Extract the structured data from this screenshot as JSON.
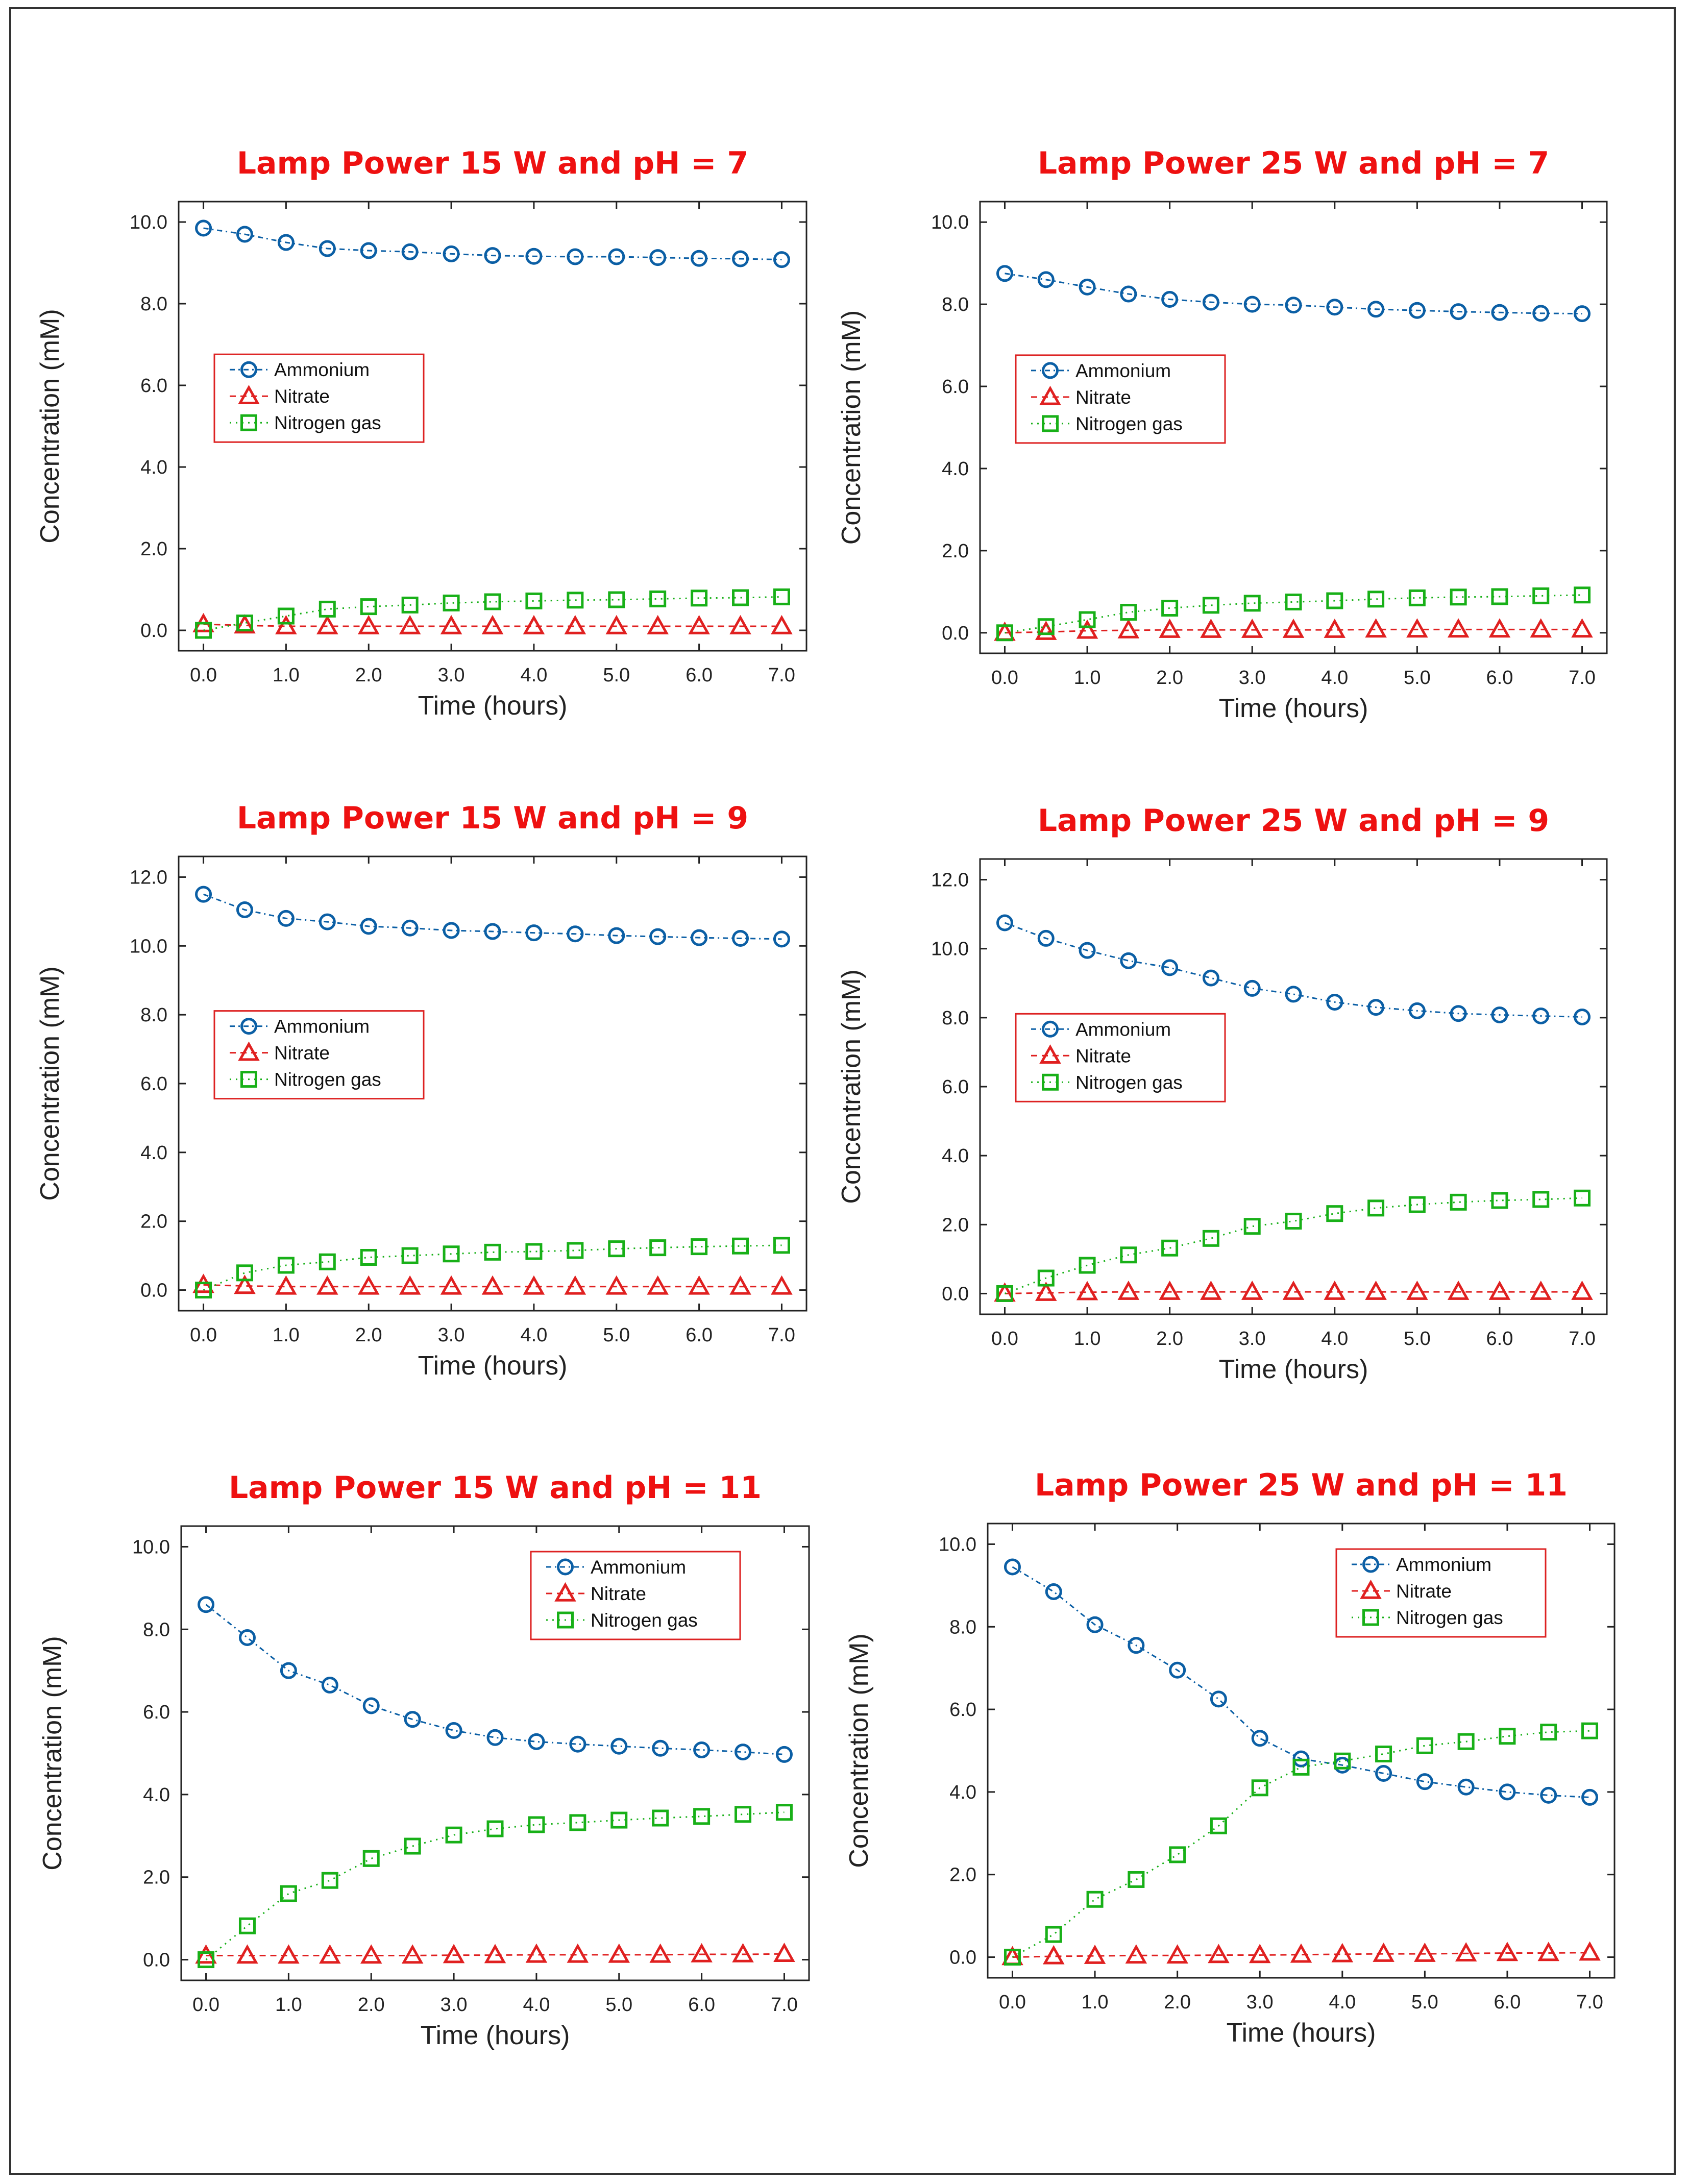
{
  "chart_data": [
    {
      "type": "line",
      "title": "Lamp Power 15 W and pH = 7",
      "xlabel": "Time (hours)",
      "ylabel": "Concentration (mM)",
      "xlim": [
        -0.3,
        7.3
      ],
      "ylim": [
        -0.5,
        10.5
      ],
      "x_ticks": [
        "0.0",
        "1.0",
        "2.0",
        "3.0",
        "4.0",
        "5.0",
        "6.0",
        "7.0"
      ],
      "y_ticks": [
        "0.0",
        "2.0",
        "4.0",
        "6.0",
        "8.0",
        "10.0"
      ],
      "legend_position": "middle-left",
      "x": [
        0,
        0.5,
        1,
        1.5,
        2,
        2.5,
        3,
        3.5,
        4,
        4.5,
        5,
        5.5,
        6,
        6.5,
        7
      ],
      "series": [
        {
          "name": "Ammonium",
          "color": "#0b5fa5",
          "marker": "circle",
          "values": [
            9.85,
            9.7,
            9.5,
            9.35,
            9.3,
            9.27,
            9.22,
            9.18,
            9.16,
            9.15,
            9.15,
            9.13,
            9.11,
            9.1,
            9.08
          ]
        },
        {
          "name": "Nitrate",
          "color": "#e02020",
          "marker": "triangle",
          "values": [
            0.15,
            0.12,
            0.1,
            0.1,
            0.1,
            0.1,
            0.1,
            0.1,
            0.1,
            0.1,
            0.1,
            0.1,
            0.1,
            0.1,
            0.1
          ]
        },
        {
          "name": "Nitrogen gas",
          "color": "#18b018",
          "marker": "square",
          "values": [
            0.0,
            0.18,
            0.35,
            0.52,
            0.58,
            0.62,
            0.67,
            0.7,
            0.72,
            0.74,
            0.75,
            0.77,
            0.79,
            0.8,
            0.82
          ]
        }
      ]
    },
    {
      "type": "line",
      "title": "Lamp Power 25 W and pH = 7",
      "xlabel": "Time (hours)",
      "ylabel": "Concentration (mM)",
      "xlim": [
        -0.3,
        7.3
      ],
      "ylim": [
        -0.5,
        10.5
      ],
      "x_ticks": [
        "0.0",
        "1.0",
        "2.0",
        "3.0",
        "4.0",
        "5.0",
        "6.0",
        "7.0"
      ],
      "y_ticks": [
        "0.0",
        "2.0",
        "4.0",
        "6.0",
        "8.0",
        "10.0"
      ],
      "legend_position": "middle-left",
      "x": [
        0,
        0.5,
        1,
        1.5,
        2,
        2.5,
        3,
        3.5,
        4,
        4.5,
        5,
        5.5,
        6,
        6.5,
        7
      ],
      "series": [
        {
          "name": "Ammonium",
          "color": "#0b5fa5",
          "marker": "circle",
          "values": [
            8.75,
            8.6,
            8.42,
            8.25,
            8.12,
            8.05,
            8.0,
            7.98,
            7.93,
            7.88,
            7.85,
            7.82,
            7.8,
            7.78,
            7.77
          ]
        },
        {
          "name": "Nitrate",
          "color": "#e02020",
          "marker": "triangle",
          "values": [
            0.0,
            0.02,
            0.05,
            0.06,
            0.07,
            0.07,
            0.07,
            0.07,
            0.07,
            0.08,
            0.08,
            0.08,
            0.08,
            0.08,
            0.08
          ]
        },
        {
          "name": "Nitrogen gas",
          "color": "#18b018",
          "marker": "square",
          "values": [
            0.0,
            0.15,
            0.32,
            0.5,
            0.6,
            0.67,
            0.72,
            0.75,
            0.78,
            0.82,
            0.85,
            0.87,
            0.88,
            0.9,
            0.92
          ]
        }
      ]
    },
    {
      "type": "line",
      "title": "Lamp Power 15 W and pH = 9",
      "xlabel": "Time (hours)",
      "ylabel": "Concentration (mM)",
      "xlim": [
        -0.3,
        7.3
      ],
      "ylim": [
        -0.6,
        12.6
      ],
      "x_ticks": [
        "0.0",
        "1.0",
        "2.0",
        "3.0",
        "4.0",
        "5.0",
        "6.0",
        "7.0"
      ],
      "y_ticks": [
        "0.0",
        "2.0",
        "4.0",
        "6.0",
        "8.0",
        "10.0",
        "12.0"
      ],
      "legend_position": "middle-left",
      "x": [
        0,
        0.5,
        1,
        1.5,
        2,
        2.5,
        3,
        3.5,
        4,
        4.5,
        5,
        5.5,
        6,
        6.5,
        7
      ],
      "series": [
        {
          "name": "Ammonium",
          "color": "#0b5fa5",
          "marker": "circle",
          "values": [
            11.5,
            11.05,
            10.8,
            10.7,
            10.57,
            10.52,
            10.45,
            10.42,
            10.38,
            10.35,
            10.3,
            10.27,
            10.24,
            10.22,
            10.2
          ]
        },
        {
          "name": "Nitrate",
          "color": "#e02020",
          "marker": "triangle",
          "values": [
            0.15,
            0.12,
            0.1,
            0.1,
            0.1,
            0.1,
            0.1,
            0.1,
            0.1,
            0.1,
            0.1,
            0.1,
            0.1,
            0.1,
            0.1
          ]
        },
        {
          "name": "Nitrogen gas",
          "color": "#18b018",
          "marker": "square",
          "values": [
            0.0,
            0.5,
            0.72,
            0.82,
            0.95,
            1.0,
            1.05,
            1.1,
            1.12,
            1.15,
            1.2,
            1.23,
            1.26,
            1.28,
            1.3
          ]
        }
      ]
    },
    {
      "type": "line",
      "title": "Lamp Power 25 W and pH = 9",
      "xlabel": "Time (hours)",
      "ylabel": "Concentration (mM)",
      "xlim": [
        -0.3,
        7.3
      ],
      "ylim": [
        -0.6,
        12.6
      ],
      "x_ticks": [
        "0.0",
        "1.0",
        "2.0",
        "3.0",
        "4.0",
        "5.0",
        "6.0",
        "7.0"
      ],
      "y_ticks": [
        "0.0",
        "2.0",
        "4.0",
        "6.0",
        "8.0",
        "10.0",
        "12.0"
      ],
      "legend_position": "middle-left",
      "x": [
        0,
        0.5,
        1,
        1.5,
        2,
        2.5,
        3,
        3.5,
        4,
        4.5,
        5,
        5.5,
        6,
        6.5,
        7
      ],
      "series": [
        {
          "name": "Ammonium",
          "color": "#0b5fa5",
          "marker": "circle",
          "values": [
            10.75,
            10.3,
            9.95,
            9.65,
            9.45,
            9.15,
            8.85,
            8.68,
            8.45,
            8.3,
            8.2,
            8.12,
            8.08,
            8.05,
            8.02
          ]
        },
        {
          "name": "Nitrate",
          "color": "#e02020",
          "marker": "triangle",
          "values": [
            0.0,
            0.02,
            0.04,
            0.05,
            0.05,
            0.05,
            0.05,
            0.05,
            0.05,
            0.05,
            0.05,
            0.05,
            0.05,
            0.05,
            0.05
          ]
        },
        {
          "name": "Nitrogen gas",
          "color": "#18b018",
          "marker": "square",
          "values": [
            0.0,
            0.45,
            0.82,
            1.12,
            1.32,
            1.6,
            1.95,
            2.1,
            2.32,
            2.48,
            2.58,
            2.65,
            2.7,
            2.73,
            2.77
          ]
        }
      ]
    },
    {
      "type": "line",
      "title": "Lamp Power 15 W and pH = 11",
      "xlabel": "Time (hours)",
      "ylabel": "Concentration (mM)",
      "xlim": [
        -0.3,
        7.3
      ],
      "ylim": [
        -0.5,
        10.5
      ],
      "x_ticks": [
        "0.0",
        "1.0",
        "2.0",
        "3.0",
        "4.0",
        "5.0",
        "6.0",
        "7.0"
      ],
      "y_ticks": [
        "0.0",
        "2.0",
        "4.0",
        "6.0",
        "8.0",
        "10.0"
      ],
      "legend_position": "top-right",
      "x": [
        0,
        0.5,
        1,
        1.5,
        2,
        2.5,
        3,
        3.5,
        4,
        4.5,
        5,
        5.5,
        6,
        6.5,
        7
      ],
      "series": [
        {
          "name": "Ammonium",
          "color": "#0b5fa5",
          "marker": "circle",
          "values": [
            8.6,
            7.8,
            7.0,
            6.65,
            6.15,
            5.82,
            5.55,
            5.38,
            5.28,
            5.22,
            5.17,
            5.12,
            5.08,
            5.03,
            4.97
          ]
        },
        {
          "name": "Nitrate",
          "color": "#e02020",
          "marker": "triangle",
          "values": [
            0.1,
            0.1,
            0.1,
            0.1,
            0.1,
            0.1,
            0.11,
            0.11,
            0.12,
            0.12,
            0.12,
            0.12,
            0.13,
            0.13,
            0.14
          ]
        },
        {
          "name": "Nitrogen gas",
          "color": "#18b018",
          "marker": "square",
          "values": [
            0.0,
            0.82,
            1.6,
            1.92,
            2.45,
            2.75,
            3.02,
            3.17,
            3.27,
            3.32,
            3.38,
            3.43,
            3.47,
            3.52,
            3.57
          ]
        }
      ]
    },
    {
      "type": "line",
      "title": "Lamp Power 25 W and pH = 11",
      "xlabel": "Time (hours)",
      "ylabel": "Concentration (mM)",
      "xlim": [
        -0.3,
        7.3
      ],
      "ylim": [
        -0.5,
        10.5
      ],
      "x_ticks": [
        "0.0",
        "1.0",
        "2.0",
        "3.0",
        "4.0",
        "5.0",
        "6.0",
        "7.0"
      ],
      "y_ticks": [
        "0.0",
        "2.0",
        "4.0",
        "6.0",
        "8.0",
        "10.0"
      ],
      "legend_position": "top-right",
      "x": [
        0,
        0.5,
        1,
        1.5,
        2,
        2.5,
        3,
        3.5,
        4,
        4.5,
        5,
        5.5,
        6,
        6.5,
        7
      ],
      "series": [
        {
          "name": "Ammonium",
          "color": "#0b5fa5",
          "marker": "circle",
          "values": [
            9.45,
            8.85,
            8.05,
            7.55,
            6.95,
            6.25,
            5.3,
            4.8,
            4.65,
            4.45,
            4.25,
            4.12,
            4.0,
            3.92,
            3.87
          ]
        },
        {
          "name": "Nitrate",
          "color": "#e02020",
          "marker": "triangle",
          "values": [
            0.0,
            0.02,
            0.03,
            0.04,
            0.04,
            0.05,
            0.05,
            0.06,
            0.07,
            0.08,
            0.08,
            0.09,
            0.1,
            0.1,
            0.11
          ]
        },
        {
          "name": "Nitrogen gas",
          "color": "#18b018",
          "marker": "square",
          "values": [
            0.0,
            0.55,
            1.4,
            1.88,
            2.48,
            3.18,
            4.1,
            4.6,
            4.75,
            4.92,
            5.12,
            5.22,
            5.35,
            5.45,
            5.48
          ]
        }
      ]
    }
  ]
}
